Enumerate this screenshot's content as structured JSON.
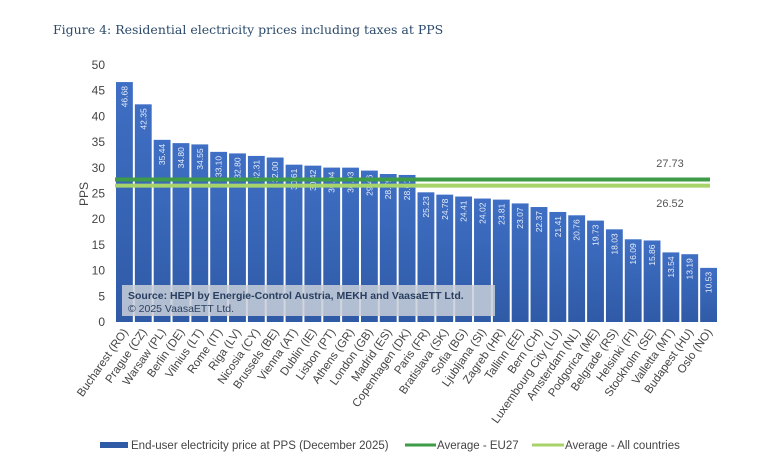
{
  "title": "Figure 4: Residential electricity prices including taxes at PPS",
  "source": {
    "line1": "Source: HEPI by Energie-Control Austria, MEKH and VaasaETT Ltd.",
    "line2": "© 2025 VaasaETT Ltd."
  },
  "colors": {
    "bar": "#3b6cc0",
    "eu27": "#3e9b48",
    "all": "#a6d36a"
  },
  "chart_data": {
    "type": "bar",
    "title": "Figure 4: Residential electricity prices including taxes at PPS",
    "xlabel": "",
    "ylabel": "PPS",
    "ylim": [
      0,
      50
    ],
    "yticks": [
      0,
      5,
      10,
      15,
      20,
      25,
      30,
      35,
      40,
      45,
      50
    ],
    "grid": false,
    "legend_placement": "bottom",
    "categories": [
      "Bucharest (RO)",
      "Prague (CZ)",
      "Warsaw (PL)",
      "Berlin (DE)",
      "Vilnius (LT)",
      "Rome (IT)",
      "Riga (LV)",
      "Nicosia (CY)",
      "Brussels (BE)",
      "Vienna (AT)",
      "Dublin (IE)",
      "Lisbon (PT)",
      "Athens (GR)",
      "London (GB)",
      "Madrid (ES)",
      "Copenhagen (DK)",
      "Paris (FR)",
      "Bratislava (SK)",
      "Sofia (BG)",
      "Ljubljana (SI)",
      "Zagreb (HR)",
      "Tallinn (EE)",
      "Bern (CH)",
      "Luxembourg City (LU)",
      "Amsterdam (NL)",
      "Podgorica (ME)",
      "Belgrade (RS)",
      "Helsinki (FI)",
      "Stockholm (SE)",
      "Valletta (MT)",
      "Budapest (HU)",
      "Oslo (NO)"
    ],
    "series": [
      {
        "name": "End-user electricity price at PPS (December 2025)",
        "values": [
          46.68,
          42.35,
          35.44,
          34.8,
          34.55,
          33.1,
          32.8,
          32.31,
          32.0,
          30.61,
          30.42,
          30.04,
          30.03,
          29.46,
          28.79,
          28.61,
          25.23,
          24.78,
          24.41,
          24.02,
          23.81,
          23.07,
          22.37,
          21.41,
          20.76,
          19.73,
          18.03,
          16.09,
          15.86,
          13.54,
          13.19,
          10.53
        ]
      },
      {
        "name": "Average - EU27",
        "value": 27.73,
        "type": "hline"
      },
      {
        "name": "Average - All countries",
        "value": 26.52,
        "type": "hline"
      }
    ]
  }
}
